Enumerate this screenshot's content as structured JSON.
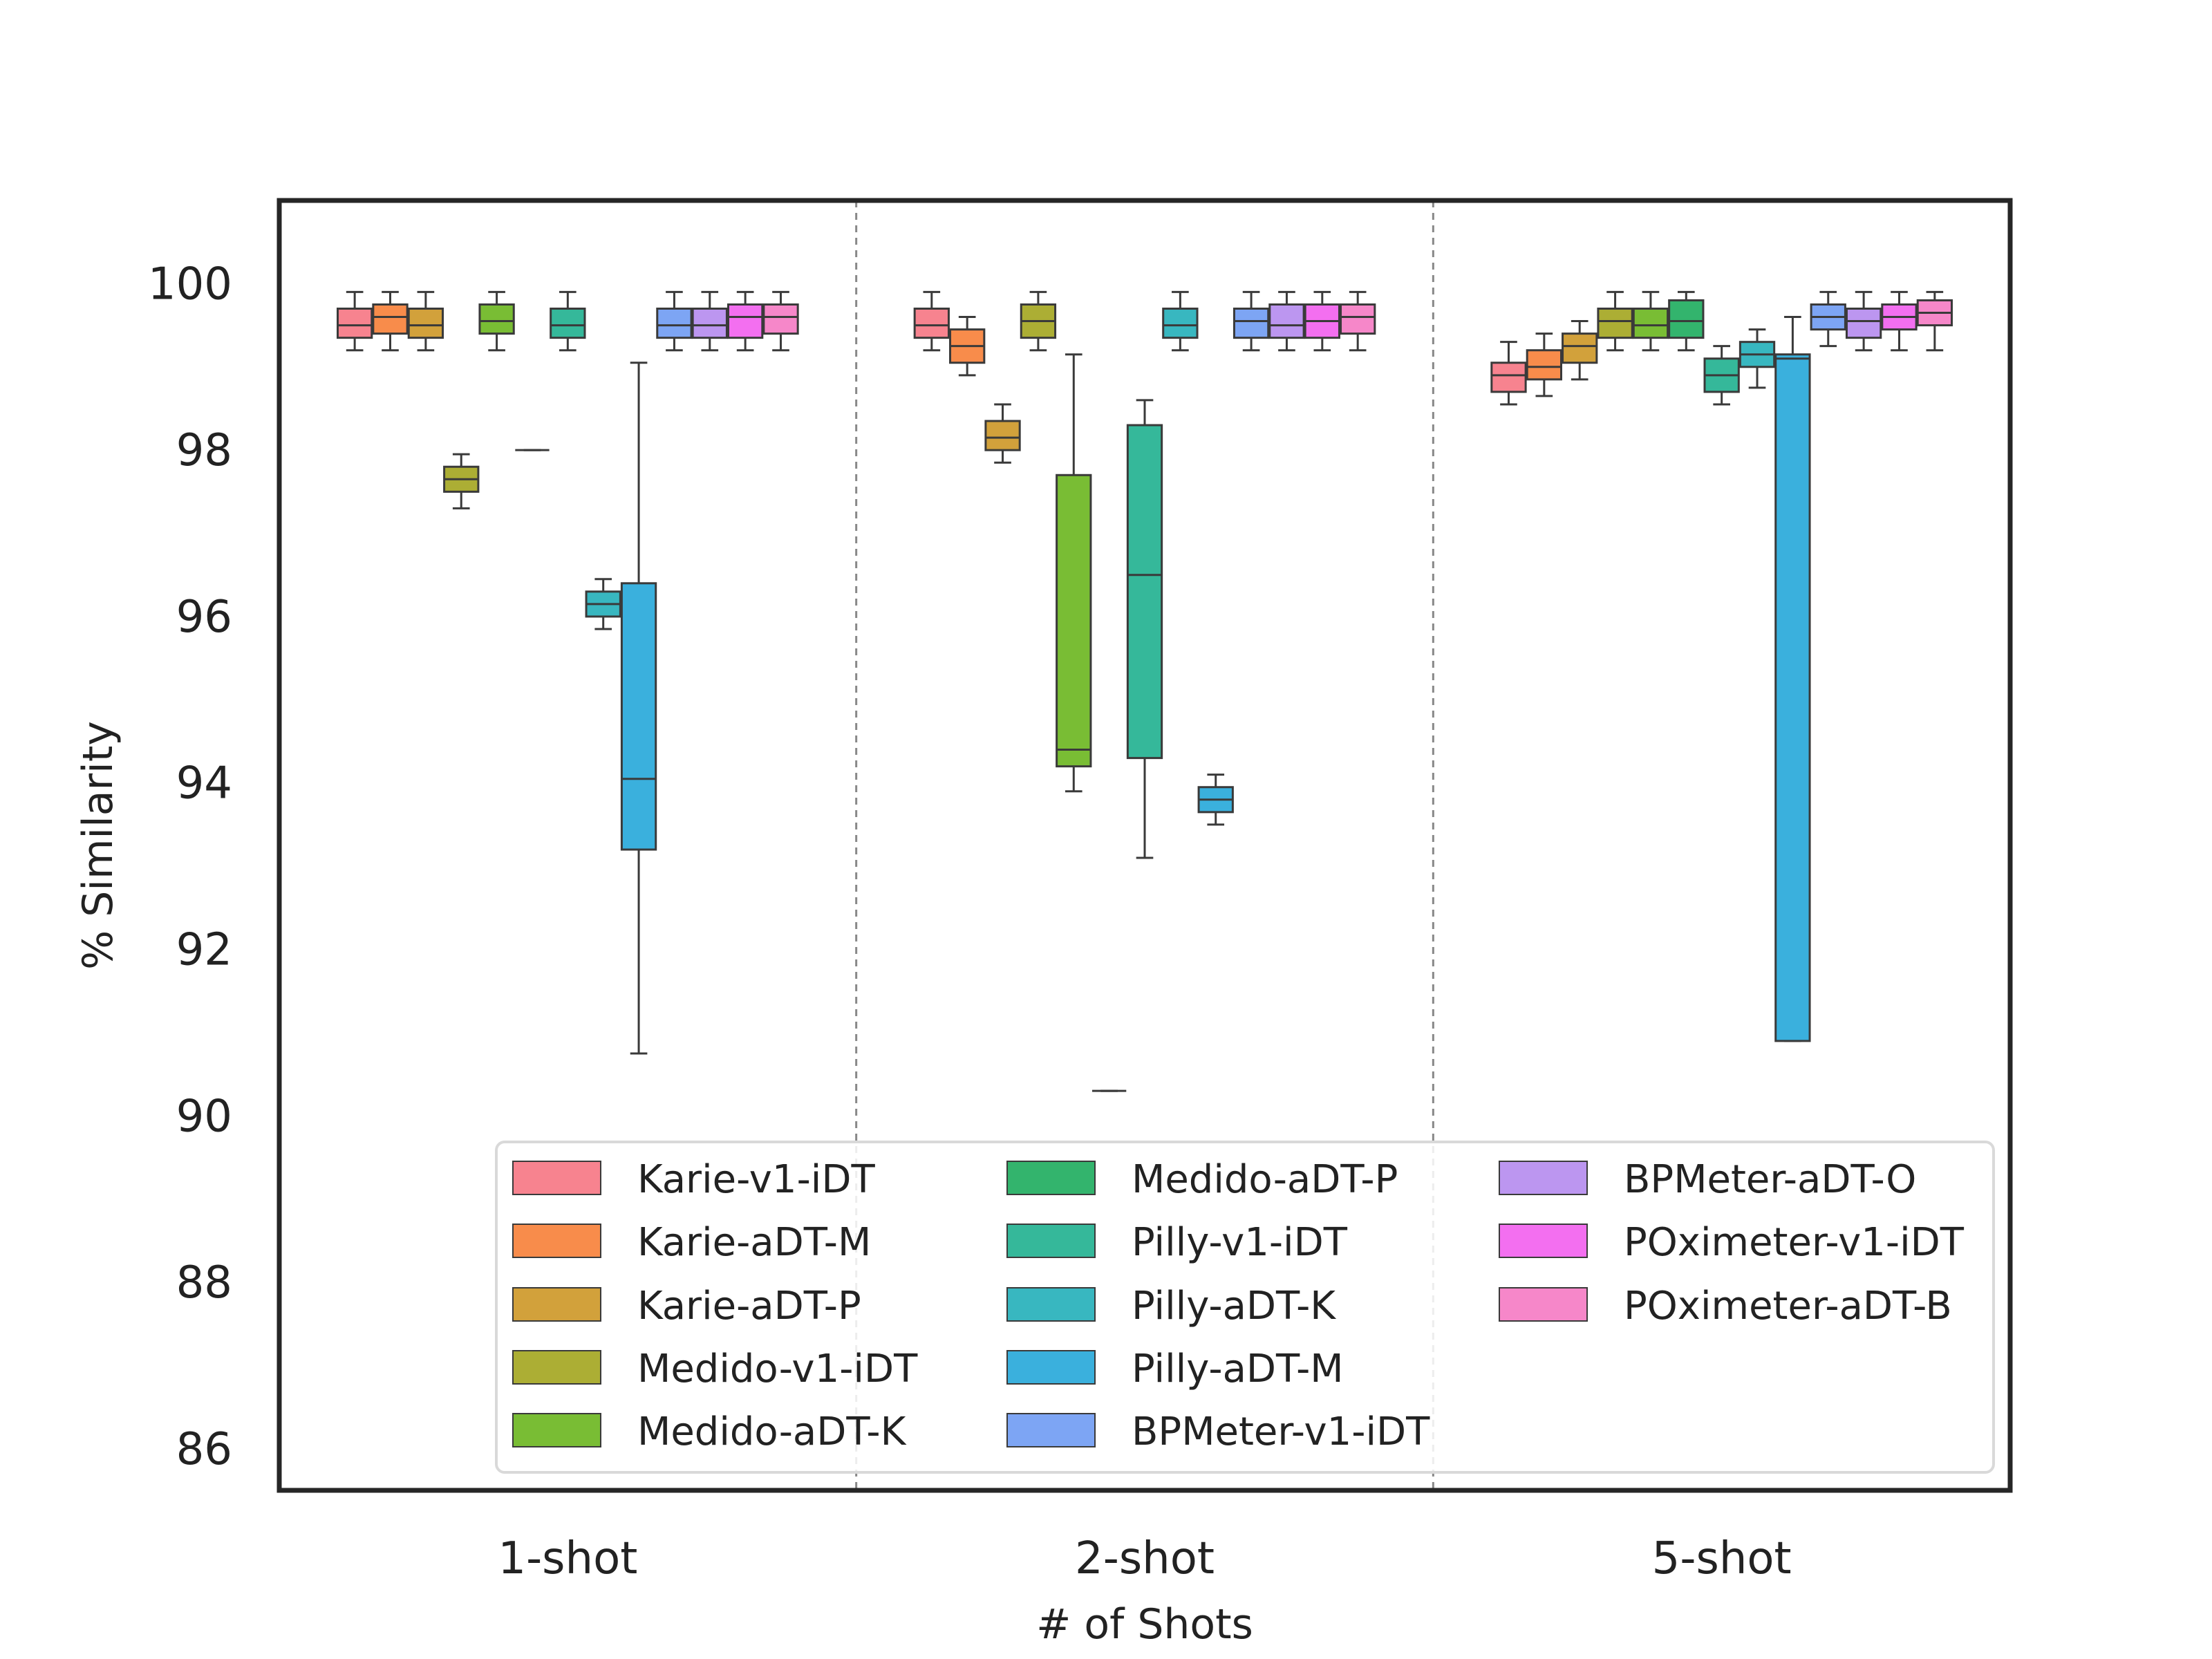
{
  "chart_data": {
    "type": "box",
    "xlabel": "# of Shots",
    "ylabel": "% Similarity",
    "ylim": [
      85.5,
      101
    ],
    "yticks": [
      86,
      88,
      90,
      92,
      94,
      96,
      98,
      100
    ],
    "grid": false,
    "legend_position": "bottom-right inside",
    "groups": [
      "1-shot",
      "2-shot",
      "5-shot"
    ],
    "series": [
      {
        "name": "Karie-v1-iDT",
        "color": "#f7838f",
        "boxes": [
          {
            "q1": 99.35,
            "median": 99.5,
            "q3": 99.7,
            "whislo": 99.2,
            "whishi": 99.9
          },
          {
            "q1": 99.35,
            "median": 99.5,
            "q3": 99.7,
            "whislo": 99.2,
            "whishi": 99.9
          },
          {
            "q1": 98.7,
            "median": 98.9,
            "q3": 99.05,
            "whislo": 98.55,
            "whishi": 99.3
          }
        ]
      },
      {
        "name": "Karie-aDT-M",
        "color": "#f88c4b",
        "boxes": [
          {
            "q1": 99.4,
            "median": 99.6,
            "q3": 99.75,
            "whislo": 99.2,
            "whishi": 99.9
          },
          {
            "q1": 99.05,
            "median": 99.25,
            "q3": 99.45,
            "whislo": 98.9,
            "whishi": 99.6
          },
          {
            "q1": 98.85,
            "median": 99.0,
            "q3": 99.2,
            "whislo": 98.65,
            "whishi": 99.4
          }
        ]
      },
      {
        "name": "Karie-aDT-P",
        "color": "#d2a13b",
        "boxes": [
          {
            "q1": 99.35,
            "median": 99.5,
            "q3": 99.7,
            "whislo": 99.2,
            "whishi": 99.9
          },
          {
            "q1": 98.0,
            "median": 98.15,
            "q3": 98.35,
            "whislo": 97.85,
            "whishi": 98.55
          },
          {
            "q1": 99.05,
            "median": 99.25,
            "q3": 99.4,
            "whislo": 98.85,
            "whishi": 99.55
          }
        ]
      },
      {
        "name": "Medido-v1-iDT",
        "color": "#acae34",
        "boxes": [
          {
            "q1": 97.5,
            "median": 97.65,
            "q3": 97.8,
            "whislo": 97.3,
            "whishi": 97.95
          },
          {
            "q1": 99.35,
            "median": 99.55,
            "q3": 99.75,
            "whislo": 99.2,
            "whishi": 99.9
          },
          {
            "q1": 99.35,
            "median": 99.55,
            "q3": 99.7,
            "whislo": 99.2,
            "whishi": 99.9
          }
        ]
      },
      {
        "name": "Medido-aDT-K",
        "color": "#79bd34",
        "boxes": [
          {
            "q1": 99.4,
            "median": 99.55,
            "q3": 99.75,
            "whislo": 99.2,
            "whishi": 99.9
          },
          {
            "q1": 94.2,
            "median": 94.4,
            "q3": 97.7,
            "whislo": 93.9,
            "whishi": 99.15
          },
          {
            "q1": 99.35,
            "median": 99.5,
            "q3": 99.7,
            "whislo": 99.2,
            "whishi": 99.9
          }
        ]
      },
      {
        "name": "Medido-aDT-P",
        "color": "#33b46d",
        "boxes": [
          {
            "q1": 98.0,
            "median": 98.0,
            "q3": 98.0,
            "whislo": 98.0,
            "whishi": 98.0
          },
          {
            "q1": 90.3,
            "median": 90.3,
            "q3": 90.3,
            "whislo": 90.3,
            "whishi": 90.3
          },
          {
            "q1": 99.35,
            "median": 99.55,
            "q3": 99.8,
            "whislo": 99.2,
            "whishi": 99.9
          }
        ]
      },
      {
        "name": "Pilly-v1-iDT",
        "color": "#35b89a",
        "boxes": [
          {
            "q1": 99.35,
            "median": 99.5,
            "q3": 99.7,
            "whislo": 99.2,
            "whishi": 99.9
          },
          {
            "q1": 94.3,
            "median": 96.5,
            "q3": 98.3,
            "whislo": 93.1,
            "whishi": 98.6
          },
          {
            "q1": 98.7,
            "median": 98.9,
            "q3": 99.1,
            "whislo": 98.55,
            "whishi": 99.25
          }
        ]
      },
      {
        "name": "Pilly-aDT-K",
        "color": "#38b7c0",
        "boxes": [
          {
            "q1": 96.0,
            "median": 96.15,
            "q3": 96.3,
            "whislo": 95.85,
            "whishi": 96.45
          },
          {
            "q1": 99.35,
            "median": 99.5,
            "q3": 99.7,
            "whislo": 99.2,
            "whishi": 99.9
          },
          {
            "q1": 99.0,
            "median": 99.15,
            "q3": 99.3,
            "whislo": 98.75,
            "whishi": 99.45
          }
        ]
      },
      {
        "name": "Pilly-aDT-M",
        "color": "#3ab0dd",
        "boxes": [
          {
            "q1": 93.2,
            "median": 94.05,
            "q3": 96.4,
            "whislo": 90.75,
            "whishi": 99.05
          },
          {
            "q1": 93.65,
            "median": 93.8,
            "q3": 93.95,
            "whislo": 93.5,
            "whishi": 94.1
          },
          {
            "q1": 90.9,
            "median": 99.1,
            "q3": 99.15,
            "whislo": 90.9,
            "whishi": 99.6
          }
        ]
      },
      {
        "name": "BPMeter-v1-iDT",
        "color": "#7da5f4",
        "boxes": [
          {
            "q1": 99.35,
            "median": 99.5,
            "q3": 99.7,
            "whislo": 99.2,
            "whishi": 99.9
          },
          {
            "q1": 99.35,
            "median": 99.55,
            "q3": 99.7,
            "whislo": 99.2,
            "whishi": 99.9
          },
          {
            "q1": 99.45,
            "median": 99.6,
            "q3": 99.75,
            "whislo": 99.25,
            "whishi": 99.9
          }
        ]
      },
      {
        "name": "BPMeter-aDT-O",
        "color": "#bc96f0",
        "boxes": [
          {
            "q1": 99.35,
            "median": 99.5,
            "q3": 99.7,
            "whislo": 99.2,
            "whishi": 99.9
          },
          {
            "q1": 99.35,
            "median": 99.5,
            "q3": 99.75,
            "whislo": 99.2,
            "whishi": 99.9
          },
          {
            "q1": 99.35,
            "median": 99.55,
            "q3": 99.7,
            "whislo": 99.2,
            "whishi": 99.9
          }
        ]
      },
      {
        "name": "POximeter-v1-iDT",
        "color": "#f36ff0",
        "boxes": [
          {
            "q1": 99.35,
            "median": 99.6,
            "q3": 99.75,
            "whislo": 99.2,
            "whishi": 99.9
          },
          {
            "q1": 99.35,
            "median": 99.55,
            "q3": 99.75,
            "whislo": 99.2,
            "whishi": 99.9
          },
          {
            "q1": 99.45,
            "median": 99.6,
            "q3": 99.75,
            "whislo": 99.2,
            "whishi": 99.9
          }
        ]
      },
      {
        "name": "POximeter-aDT-B",
        "color": "#f687c9",
        "boxes": [
          {
            "q1": 99.4,
            "median": 99.6,
            "q3": 99.75,
            "whislo": 99.2,
            "whishi": 99.9
          },
          {
            "q1": 99.4,
            "median": 99.6,
            "q3": 99.75,
            "whislo": 99.2,
            "whishi": 99.9
          },
          {
            "q1": 99.5,
            "median": 99.65,
            "q3": 99.8,
            "whislo": 99.2,
            "whishi": 99.9
          }
        ]
      }
    ]
  }
}
